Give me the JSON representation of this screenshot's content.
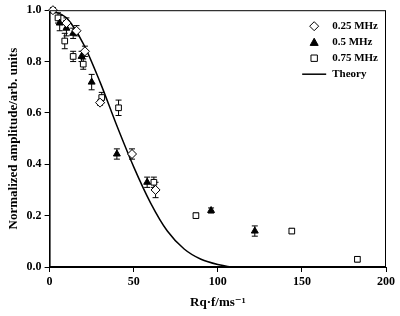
{
  "chart_data": {
    "type": "scatter",
    "x_label": "Rq·f/ms⁻¹",
    "y_label": "Normalized amplitude/arb. units",
    "xlim": [
      0,
      200
    ],
    "xticks": [
      0,
      50,
      100,
      150,
      200
    ],
    "ylim": [
      0,
      1
    ],
    "yticks": [
      {
        "value": 0,
        "label": "0.0"
      },
      0.2,
      0.4,
      0.6,
      0.8,
      {
        "value": 1,
        "label": "1.0"
      }
    ],
    "grid": false,
    "legend": "upper right",
    "series": [
      {
        "name": "0.25 MHz",
        "type": "scatter",
        "marker": "diamond_open",
        "color": "#000000",
        "x": [
          2,
          10,
          16,
          21,
          30,
          49,
          63
        ],
        "values": [
          1.0,
          0.95,
          0.92,
          0.84,
          0.64,
          0.44,
          0.3
        ],
        "errors": [
          0.01,
          0.02,
          0.02,
          0.02,
          0.01,
          0.02,
          0.03
        ]
      },
      {
        "name": "0.5 MHz",
        "type": "scatter",
        "marker": "triangle",
        "color": "#000000",
        "x": [
          6,
          10,
          14,
          19,
          25,
          40,
          58,
          96,
          122
        ],
        "values": [
          0.95,
          0.93,
          0.91,
          0.82,
          0.72,
          0.44,
          0.33,
          0.22,
          0.14
        ],
        "errors": [
          0.03,
          0.03,
          0.02,
          0.02,
          0.03,
          0.02,
          0.02,
          0.01,
          0.02
        ]
      },
      {
        "name": "0.75 MHz",
        "type": "scatter",
        "marker": "square_open",
        "color": "#000000",
        "x": [
          5,
          9,
          14,
          20,
          31,
          41,
          62,
          87,
          144,
          183
        ],
        "values": [
          0.97,
          0.88,
          0.82,
          0.79,
          0.66,
          0.62,
          0.33,
          0.2,
          0.14,
          0.03
        ],
        "errors": [
          0.02,
          0.03,
          0.02,
          0.02,
          0.02,
          0.03,
          0.02,
          0.01,
          0.01,
          0.01
        ]
      },
      {
        "name": "Theory",
        "type": "line",
        "line_style": "solid",
        "color": "#000000",
        "x": [
          0,
          10,
          20,
          30,
          40,
          50,
          60,
          70,
          80,
          90,
          100,
          110,
          120,
          130
        ],
        "values": [
          1.0,
          0.97,
          0.87,
          0.72,
          0.55,
          0.39,
          0.25,
          0.14,
          0.07,
          0.03,
          0.01,
          0.0,
          0.0,
          0.0
        ]
      }
    ]
  }
}
